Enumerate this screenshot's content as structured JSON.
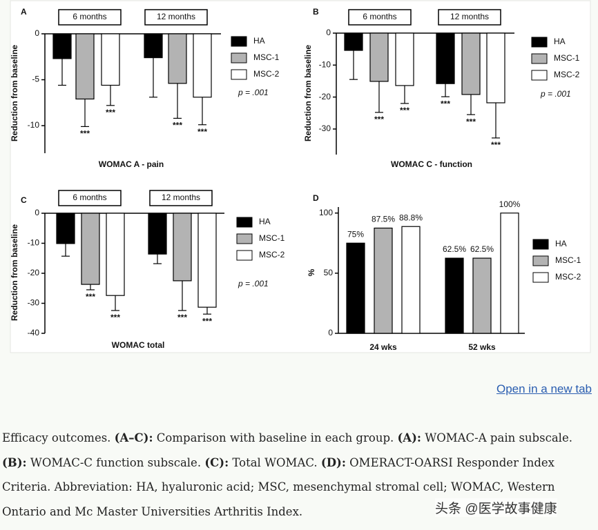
{
  "chart_data": [
    {
      "type": "bar",
      "title": "A",
      "ylabel": "Reduction from baseline",
      "xlabel": "WOMAC A - pain",
      "category_position": "top",
      "categories": [
        "6 months",
        "12 months"
      ],
      "series": [
        {
          "name": "HA",
          "color": "#000000",
          "values": [
            -2.7,
            -2.6
          ],
          "errors": [
            2.9,
            4.3
          ]
        },
        {
          "name": "MSC-1",
          "color": "#b3b3b3",
          "values": [
            -7.1,
            -5.4
          ],
          "errors": [
            3.0,
            3.8
          ],
          "annotations": [
            "***",
            "***"
          ]
        },
        {
          "name": "MSC-2",
          "color": "#ffffff",
          "values": [
            -5.6,
            -6.9
          ],
          "errors": [
            2.2,
            3.0
          ],
          "annotations": [
            "***",
            "***"
          ]
        }
      ],
      "ylim": [
        -13,
        0
      ],
      "yticks": [
        0,
        -5,
        -10
      ],
      "annotation": "p = .001"
    },
    {
      "type": "bar",
      "title": "B",
      "ylabel": "Reduction from baseline",
      "xlabel": "WOMAC C - function",
      "category_position": "top",
      "categories": [
        "6 months",
        "12 months"
      ],
      "series": [
        {
          "name": "HA",
          "color": "#000000",
          "values": [
            -5.4,
            -15.8
          ],
          "errors": [
            9.1,
            4.1
          ],
          "annotations": [
            null,
            "***"
          ]
        },
        {
          "name": "MSC-1",
          "color": "#b3b3b3",
          "values": [
            -15.1,
            -19.2
          ],
          "errors": [
            9.7,
            6.3
          ],
          "annotations": [
            "***",
            "***"
          ]
        },
        {
          "name": "MSC-2",
          "color": "#ffffff",
          "values": [
            -16.4,
            -21.8
          ],
          "errors": [
            5.6,
            11.0
          ],
          "annotations": [
            "***",
            "***"
          ]
        }
      ],
      "ylim": [
        -38,
        0
      ],
      "yticks": [
        0,
        -10,
        -20,
        -30
      ],
      "annotation": "p = .001"
    },
    {
      "type": "bar",
      "title": "C",
      "ylabel": "Reduction from baseline",
      "xlabel": "WOMAC total",
      "category_position": "top",
      "categories": [
        "6 months",
        "12 months"
      ],
      "series": [
        {
          "name": "HA",
          "color": "#000000",
          "values": [
            -10.1,
            -13.6
          ],
          "errors": [
            4.2,
            3.2
          ]
        },
        {
          "name": "MSC-1",
          "color": "#b3b3b3",
          "values": [
            -23.7,
            -22.5
          ],
          "errors": [
            1.8,
            9.9
          ],
          "annotations": [
            "***",
            "***"
          ]
        },
        {
          "name": "MSC-2",
          "color": "#ffffff",
          "values": [
            -27.4,
            -31.3
          ],
          "errors": [
            5.0,
            2.3
          ],
          "annotations": [
            "***",
            "***"
          ]
        }
      ],
      "ylim": [
        -40,
        0
      ],
      "yticks": [
        0,
        -10,
        -20,
        -30,
        -40
      ],
      "annotation": "p = .001"
    },
    {
      "type": "bar",
      "title": "D",
      "ylabel": "%",
      "category_position": "bottom",
      "categories": [
        "24 wks",
        "52 wks"
      ],
      "series": [
        {
          "name": "HA",
          "color": "#000000",
          "values": [
            75,
            62.5
          ],
          "value_labels": [
            "75%",
            "62.5%"
          ]
        },
        {
          "name": "MSC-1",
          "color": "#b3b3b3",
          "values": [
            87.5,
            62.5
          ],
          "value_labels": [
            "87.5%",
            "62.5%"
          ]
        },
        {
          "name": "MSC-2",
          "color": "#ffffff",
          "values": [
            88.8,
            100
          ],
          "value_labels": [
            "88.8%",
            "100%"
          ]
        }
      ],
      "ylim": [
        0,
        105
      ],
      "yticks": [
        0,
        50,
        100
      ]
    }
  ],
  "link": "Open in a new tab",
  "caption": [
    "Efficacy outcomes. ",
    "(A–C):",
    " Comparison with baseline in each group. ",
    "(A):",
    " WOMAC-A pain subscale.",
    "(B):",
    " WOMAC-C function subscale. ",
    "(C):",
    " Total WOMAC. ",
    "(D):",
    " OMERACT-OARSI Responder Index",
    "Criteria. Abbreviation: HA, hyaluronic acid; MSC, mesenchymal stromal cell; WOMAC, Western",
    "Ontario and Mc Master Universities Arthritis Index."
  ],
  "watermark": "头条 @医学故事健康"
}
